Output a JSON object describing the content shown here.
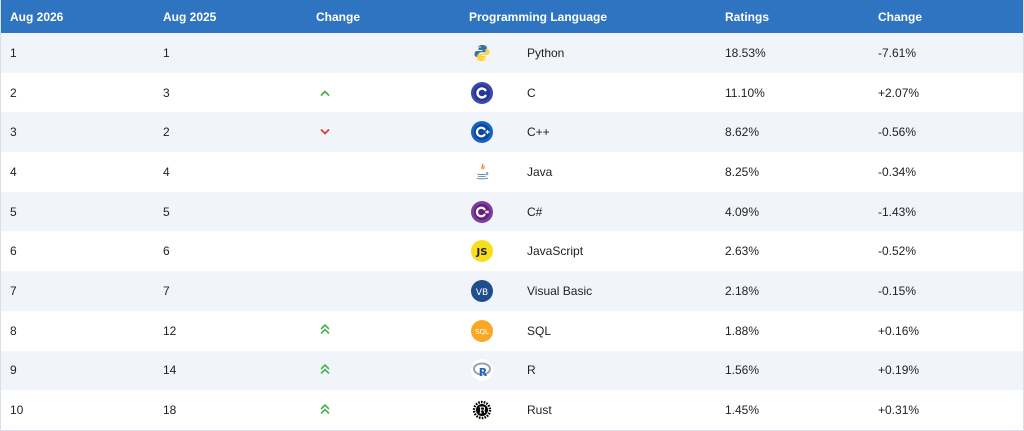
{
  "header": {
    "col_current": "Aug 2026",
    "col_previous": "Aug 2025",
    "col_change": "Change",
    "col_language": "Programming Language",
    "col_ratings": "Ratings",
    "col_ratings_change": "Change"
  },
  "rows": [
    {
      "rank": "1",
      "prev": "1",
      "change": "none",
      "icon": "python-icon",
      "lang": "Python",
      "rating": "18.53%",
      "delta": "-7.61%"
    },
    {
      "rank": "2",
      "prev": "3",
      "change": "up",
      "icon": "c-icon",
      "lang": "C",
      "rating": "11.10%",
      "delta": "+2.07%"
    },
    {
      "rank": "3",
      "prev": "2",
      "change": "down",
      "icon": "cpp-icon",
      "lang": "C++",
      "rating": "8.62%",
      "delta": "-0.56%"
    },
    {
      "rank": "4",
      "prev": "4",
      "change": "none",
      "icon": "java-icon",
      "lang": "Java",
      "rating": "8.25%",
      "delta": "-0.34%"
    },
    {
      "rank": "5",
      "prev": "5",
      "change": "none",
      "icon": "csharp-icon",
      "lang": "C#",
      "rating": "4.09%",
      "delta": "-1.43%"
    },
    {
      "rank": "6",
      "prev": "6",
      "change": "none",
      "icon": "javascript-icon",
      "lang": "JavaScript",
      "rating": "2.63%",
      "delta": "-0.52%"
    },
    {
      "rank": "7",
      "prev": "7",
      "change": "none",
      "icon": "visual-basic-icon",
      "lang": "Visual Basic",
      "rating": "2.18%",
      "delta": "-0.15%"
    },
    {
      "rank": "8",
      "prev": "12",
      "change": "double-up",
      "icon": "sql-icon",
      "lang": "SQL",
      "rating": "1.88%",
      "delta": "+0.16%"
    },
    {
      "rank": "9",
      "prev": "14",
      "change": "double-up",
      "icon": "r-icon",
      "lang": "R",
      "rating": "1.56%",
      "delta": "+0.19%"
    },
    {
      "rank": "10",
      "prev": "18",
      "change": "double-up",
      "icon": "rust-icon",
      "lang": "Rust",
      "rating": "1.45%",
      "delta": "+0.31%"
    }
  ],
  "icon_text": {
    "javascript-icon": "JS",
    "visual-basic-icon": "VB",
    "sql-icon": "SQL",
    "r-icon": "R"
  },
  "colors": {
    "header_bg": "#2f74c0",
    "up": "#4caf50",
    "down": "#e53935"
  }
}
